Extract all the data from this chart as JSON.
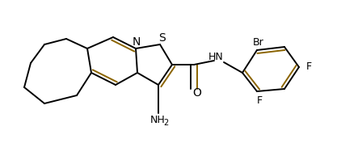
{
  "bg_color": "#ffffff",
  "line_color": "#000000",
  "dbl_color": "#8B6400",
  "lw": 1.4,
  "figsize": [
    4.48,
    1.93
  ],
  "dpi": 100,
  "xlim": [
    0,
    448
  ],
  "ylim": [
    0,
    193
  ]
}
